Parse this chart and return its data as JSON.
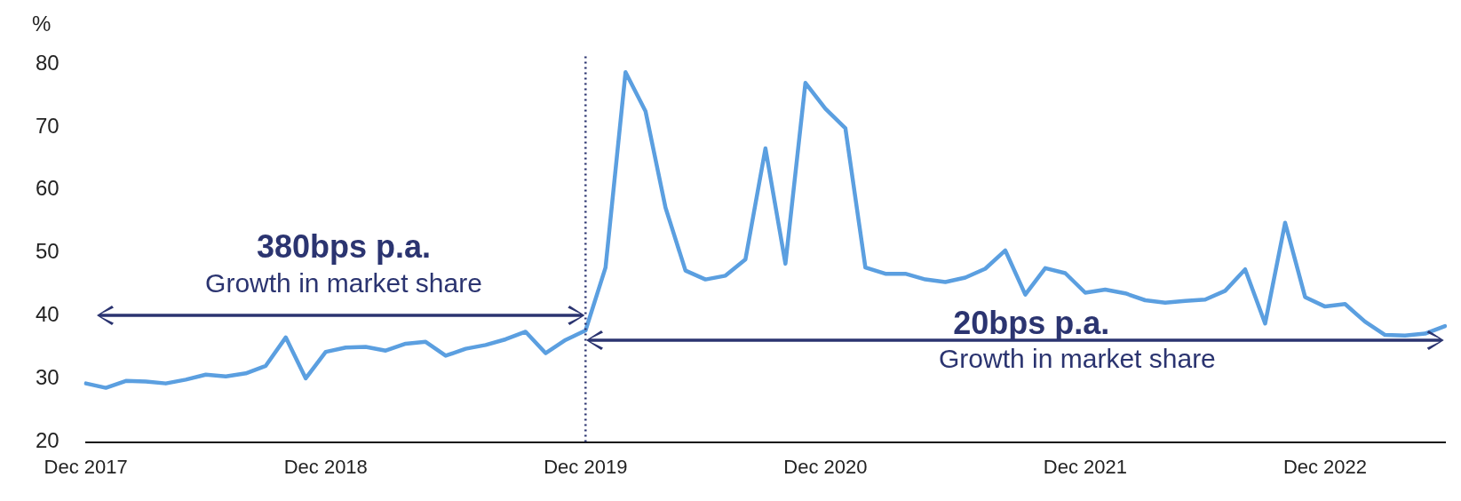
{
  "chart_data": {
    "type": "line",
    "ylabel": "%",
    "categories": [
      "Dec 2017",
      null,
      null,
      null,
      null,
      null,
      null,
      null,
      null,
      null,
      null,
      null,
      "Dec 2018",
      null,
      null,
      null,
      null,
      null,
      null,
      null,
      null,
      null,
      null,
      null,
      null,
      "Dec 2019",
      null,
      null,
      null,
      null,
      null,
      null,
      null,
      null,
      null,
      null,
      null,
      "Dec 2020",
      null,
      null,
      null,
      null,
      null,
      null,
      null,
      null,
      null,
      null,
      null,
      null,
      "Dec 2021",
      null,
      null,
      null,
      null,
      null,
      null,
      null,
      null,
      null,
      null,
      null,
      "Dec 2022",
      null,
      null,
      null,
      null,
      null,
      null
    ],
    "series": [
      {
        "color": "#5b9fe0",
        "values": [
          29.3,
          28.6,
          29.7,
          29.6,
          29.3,
          29.9,
          30.7,
          30.4,
          30.9,
          32.1,
          36.6,
          30.1,
          34.3,
          35.0,
          35.1,
          34.5,
          35.6,
          35.9,
          33.7,
          34.8,
          35.4,
          36.3,
          37.5,
          34.1,
          36.2,
          37.7,
          47.7,
          78.7,
          72.5,
          57.2,
          47.2,
          45.8,
          46.4,
          49.0,
          66.6,
          48.3,
          77.0,
          72.9,
          69.8,
          47.7,
          46.7,
          46.7,
          45.8,
          45.4,
          46.1,
          47.5,
          50.4,
          43.4,
          47.6,
          46.8,
          43.7,
          44.2,
          43.6,
          42.5,
          42.1,
          42.4,
          42.6,
          44.0,
          47.4,
          38.8,
          54.8,
          43.0,
          41.5,
          41.9,
          39.1,
          37.0,
          36.9,
          37.2,
          38.4
        ]
      }
    ],
    "ylim": [
      20,
      80
    ],
    "yticks": [
      20,
      30,
      40,
      50,
      60,
      70,
      80
    ],
    "grid": false,
    "legend": false,
    "marker": "none",
    "line_style": "solid",
    "ref_lines": [
      {
        "axis": "x",
        "value": "Dec 2019",
        "color": "#2b3470",
        "line_style": "dotted"
      }
    ],
    "annotations": [
      "380bps p.a.",
      "Growth in market share",
      "20bps p.a.",
      "Growth in market share"
    ]
  }
}
